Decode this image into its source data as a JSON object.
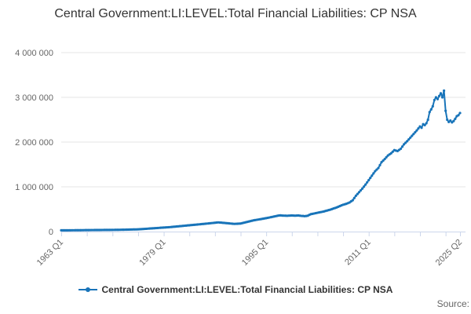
{
  "chart": {
    "title": "Central Government:LI:LEVEL:Total Financial Liabilities: CP NSA",
    "legend_label": "Central Government:LI:LEVEL:Total Financial Liabilities: CP NSA",
    "source_label": "Source:",
    "colors": {
      "line": "#1874b9",
      "grid": "#e6e6e6",
      "axis": "#ccd6eb",
      "title_text": "#333333",
      "label_text": "#666666"
    }
  },
  "chart_data": {
    "type": "line",
    "title": "Central Government:LI:LEVEL:Total Financial Liabilities: CP NSA",
    "xlabel": "",
    "ylabel": "",
    "x_frequency": "quarterly",
    "x_start": "1963 Q1",
    "x_end": "2025 Q2",
    "ylim": [
      0,
      4000000
    ],
    "grid": "horizontal-only",
    "legend_position": "bottom-center",
    "y_ticks": [
      {
        "value": 0,
        "label": "0"
      },
      {
        "value": 1000000,
        "label": "1 000 000"
      },
      {
        "value": 2000000,
        "label": "2 000 000"
      },
      {
        "value": 3000000,
        "label": "3 000 000"
      },
      {
        "value": 4000000,
        "label": "4 000 000"
      }
    ],
    "x_labeled_ticks": [
      {
        "q": 0,
        "label": "1963 Q1"
      },
      {
        "q": 64,
        "label": "1979 Q1"
      },
      {
        "q": 128,
        "label": "1995 Q1"
      },
      {
        "q": 192,
        "label": "2011 Q1"
      },
      {
        "q": 249,
        "label": "2025 Q2"
      }
    ],
    "minor_tick_every_quarters": 16,
    "series": [
      {
        "name": "Central Government:LI:LEVEL:Total Financial Liabilities: CP NSA",
        "values": [
          28000,
          28200,
          28500,
          28800,
          29000,
          29300,
          29500,
          29800,
          30000,
          30300,
          30500,
          30800,
          31000,
          31500,
          32000,
          32500,
          33000,
          33300,
          33600,
          34000,
          34300,
          34600,
          35000,
          35300,
          35600,
          36000,
          36300,
          36600,
          37000,
          37300,
          37600,
          38000,
          38300,
          38600,
          39000,
          39500,
          40000,
          40800,
          41500,
          42300,
          43000,
          44000,
          45000,
          46000,
          47000,
          47800,
          48500,
          49300,
          50000,
          52500,
          55000,
          57500,
          60000,
          62500,
          65000,
          67500,
          70000,
          72500,
          75000,
          77500,
          80000,
          82500,
          85000,
          87500,
          90000,
          92500,
          95000,
          97500,
          100000,
          103400,
          106800,
          110200,
          113600,
          117000,
          120400,
          123800,
          127300,
          130700,
          134100,
          137500,
          140900,
          144300,
          147700,
          151100,
          154500,
          158000,
          161400,
          164800,
          168200,
          171600,
          175000,
          178800,
          182500,
          186250,
          190000,
          193750,
          197500,
          201250,
          205000,
          202500,
          199000,
          195700,
          192400,
          189100,
          185800,
          182500,
          179200,
          175900,
          172500,
          174000,
          176000,
          178000,
          180000,
          188750,
          197500,
          206250,
          215000,
          223750,
          232500,
          241250,
          250000,
          256250,
          262500,
          268750,
          275000,
          281250,
          287500,
          293750,
          300000,
          307500,
          315000,
          322500,
          330000,
          337500,
          345000,
          352500,
          360000,
          362000,
          358000,
          356000,
          355000,
          353000,
          356000,
          358000,
          360000,
          357000,
          355000,
          358000,
          360000,
          355000,
          350000,
          348000,
          345000,
          348000,
          355000,
          375000,
          390000,
          397000,
          405000,
          412000,
          420000,
          427000,
          435000,
          442000,
          450000,
          460000,
          470000,
          480000,
          490000,
          502000,
          515000,
          527000,
          540000,
          555000,
          570000,
          585000,
          600000,
          610000,
          620000,
          635000,
          650000,
          675000,
          700000,
          750000,
          800000,
          840000,
          880000,
          920000,
          960000,
          1005000,
          1050000,
          1100000,
          1150000,
          1200000,
          1250000,
          1300000,
          1350000,
          1385000,
          1420000,
          1485000,
          1550000,
          1585000,
          1620000,
          1660000,
          1700000,
          1725000,
          1750000,
          1785000,
          1820000,
          1810000,
          1800000,
          1825000,
          1850000,
          1900000,
          1950000,
          1985000,
          2020000,
          2060000,
          2100000,
          2140000,
          2180000,
          2220000,
          2260000,
          2305000,
          2350000,
          2320000,
          2400000,
          2380000,
          2420000,
          2500000,
          2670000,
          2730000,
          2800000,
          2940000,
          3000000,
          2960000,
          3030000,
          3090000,
          3000000,
          3150000,
          2700000,
          2500000,
          2450000,
          2480000,
          2440000,
          2470000,
          2520000,
          2580000,
          2600000,
          2650000
        ]
      }
    ]
  }
}
